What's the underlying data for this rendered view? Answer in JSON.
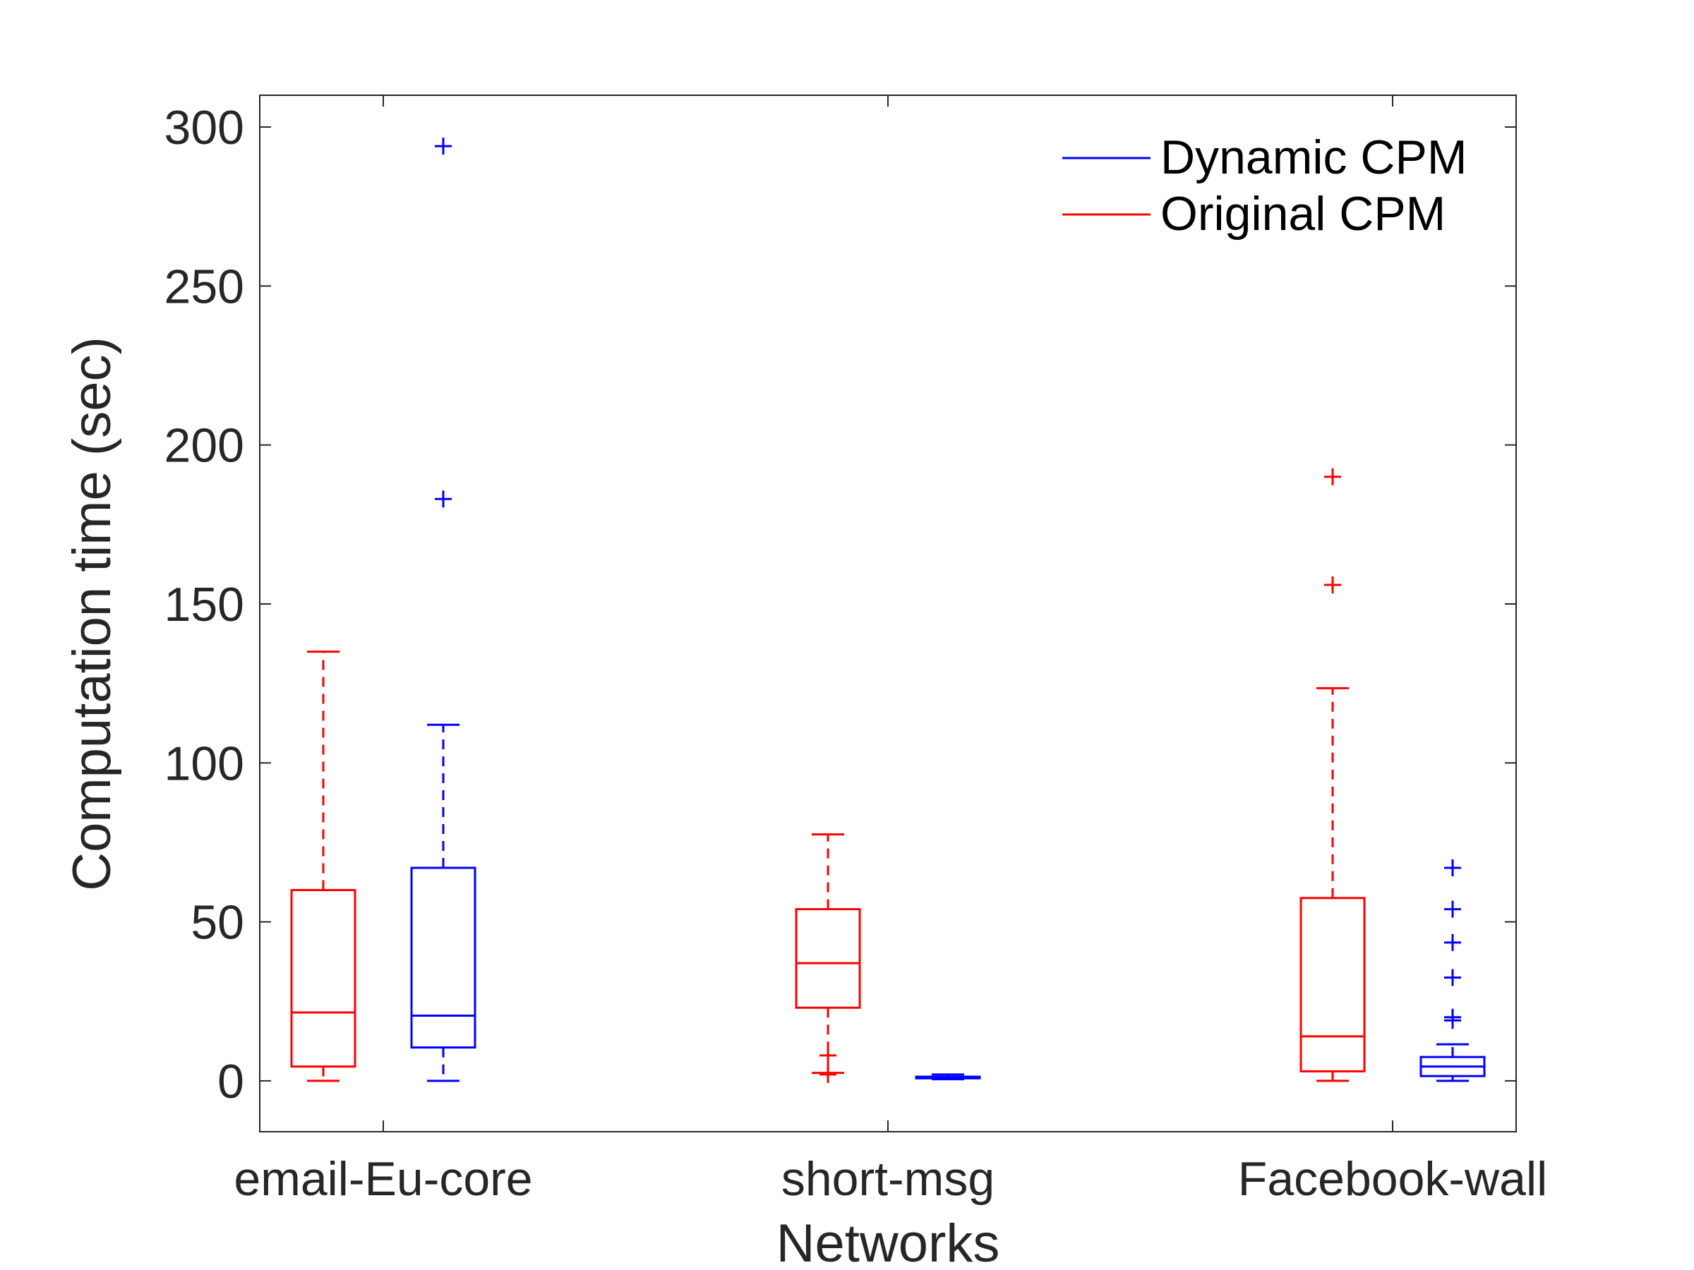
{
  "chart_data": {
    "type": "box",
    "categories": [
      "email-Eu-core",
      "short-msg",
      "Facebook-wall"
    ],
    "xlabel": "Networks",
    "ylabel": "Computation time (sec)",
    "ylim": [
      -16,
      310
    ],
    "yticks": [
      0,
      50,
      100,
      150,
      200,
      250,
      300
    ],
    "grid": false,
    "legend_position": "top-right",
    "series": [
      {
        "name": "Dynamic CPM",
        "color": "#0000ff",
        "boxes": [
          {
            "category": "email-Eu-core",
            "whisker_low": 0,
            "q1": 10.5,
            "median": 20.5,
            "q3": 67,
            "whisker_high": 112,
            "outliers": [
              183,
              294
            ]
          },
          {
            "category": "short-msg",
            "whisker_low": 0.5,
            "q1": 0.8,
            "median": 1,
            "q3": 1.3,
            "whisker_high": 2,
            "outliers": []
          },
          {
            "category": "Facebook-wall",
            "whisker_low": 0,
            "q1": 1.5,
            "median": 4.5,
            "q3": 7.5,
            "whisker_high": 11.5,
            "outliers": [
              19,
              20,
              32.5,
              43.5,
              54,
              67
            ]
          }
        ]
      },
      {
        "name": "Original CPM",
        "color": "#ff0000",
        "boxes": [
          {
            "category": "email-Eu-core",
            "whisker_low": 0,
            "q1": 4.5,
            "median": 21.5,
            "q3": 60,
            "whisker_high": 135,
            "outliers": []
          },
          {
            "category": "short-msg",
            "whisker_low": 2.5,
            "q1": 23,
            "median": 37,
            "q3": 54,
            "whisker_high": 77.5,
            "outliers": [
              2,
              8
            ]
          },
          {
            "category": "Facebook-wall",
            "whisker_low": 0,
            "q1": 3,
            "median": 14,
            "q3": 57.5,
            "whisker_high": 123.5,
            "outliers": [
              156,
              190
            ]
          }
        ]
      }
    ]
  }
}
